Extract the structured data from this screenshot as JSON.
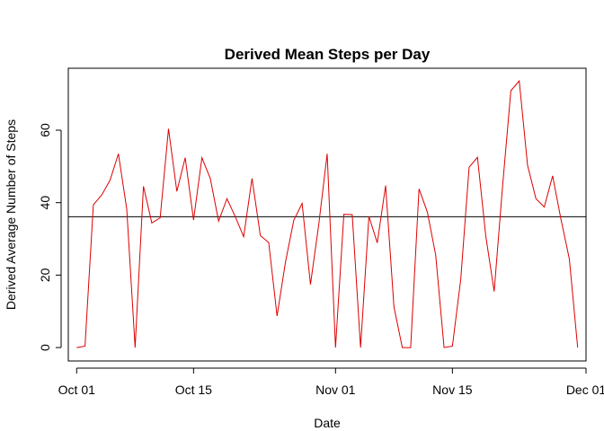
{
  "chart_data": {
    "type": "line",
    "title": "Derived Mean Steps per Day",
    "xlabel": "Date",
    "ylabel": "Derived Average Number of Steps",
    "x_start_date": "2012-10-01",
    "xlim": [
      "2012-09-30",
      "2012-12-01"
    ],
    "ylim": [
      -3.7,
      77.1
    ],
    "x_ticks": [
      {
        "date": "2012-10-01",
        "label": "Oct 01"
      },
      {
        "date": "2012-10-15",
        "label": "Oct 15"
      },
      {
        "date": "2012-11-01",
        "label": "Nov 01"
      },
      {
        "date": "2012-11-15",
        "label": "Nov 15"
      },
      {
        "date": "2012-12-01",
        "label": "Dec 01"
      }
    ],
    "y_ticks": [
      0,
      20,
      40,
      60
    ],
    "series": [
      {
        "color": "#dd0000",
        "values": [
          0.0,
          0.4,
          39.4,
          42.1,
          46.2,
          53.5,
          38.2,
          0.0,
          44.5,
          34.4,
          35.8,
          60.4,
          43.1,
          52.4,
          35.2,
          52.4,
          46.7,
          34.9,
          41.1,
          36.1,
          30.6,
          46.7,
          30.9,
          29.0,
          8.7,
          23.5,
          35.1,
          39.8,
          17.4,
          34.1,
          53.5,
          0.0,
          36.8,
          36.7,
          0.0,
          36.2,
          28.9,
          44.7,
          11.2,
          0.0,
          0.0,
          43.8,
          37.4,
          25.5,
          0.0,
          0.4,
          18.9,
          49.8,
          52.5,
          30.7,
          15.5,
          44.4,
          70.9,
          73.6,
          50.3,
          41.1,
          38.8,
          47.4,
          35.4,
          24.5,
          0.0
        ]
      }
    ],
    "hline": {
      "y": 36.1,
      "color": "#000000"
    }
  }
}
